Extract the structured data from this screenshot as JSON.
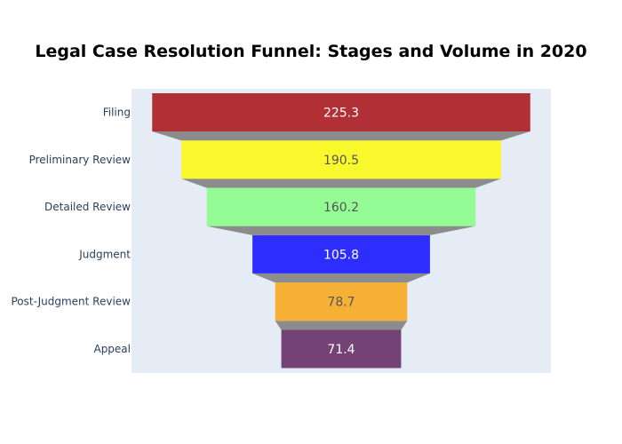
{
  "chart_data": {
    "type": "funnel",
    "title": "Legal Case Resolution Funnel: Stages and Volume in 2020",
    "categories": [
      "Filing",
      "Preliminary Review",
      "Detailed Review",
      "Judgment",
      "Post-Judgment Review",
      "Appeal"
    ],
    "values": [
      225.3,
      190.5,
      160.2,
      105.8,
      78.7,
      71.4
    ],
    "value_labels": [
      "225.3",
      "190.5",
      "160.2",
      "105.8",
      "78.7",
      "71.4"
    ],
    "colors": [
      "#b03035",
      "#f8f82d",
      "#95fc95",
      "#2d2dff",
      "#f5b035",
      "#744275"
    ],
    "label_colors": [
      "#ffffff",
      "#555555",
      "#555555",
      "#ffffff",
      "#555555",
      "#ffffff"
    ],
    "connector_color": "#8c8c8c",
    "plot_background": "#e5ecf6",
    "xlabel": "",
    "ylabel": "",
    "grid": false,
    "legend": "none"
  }
}
